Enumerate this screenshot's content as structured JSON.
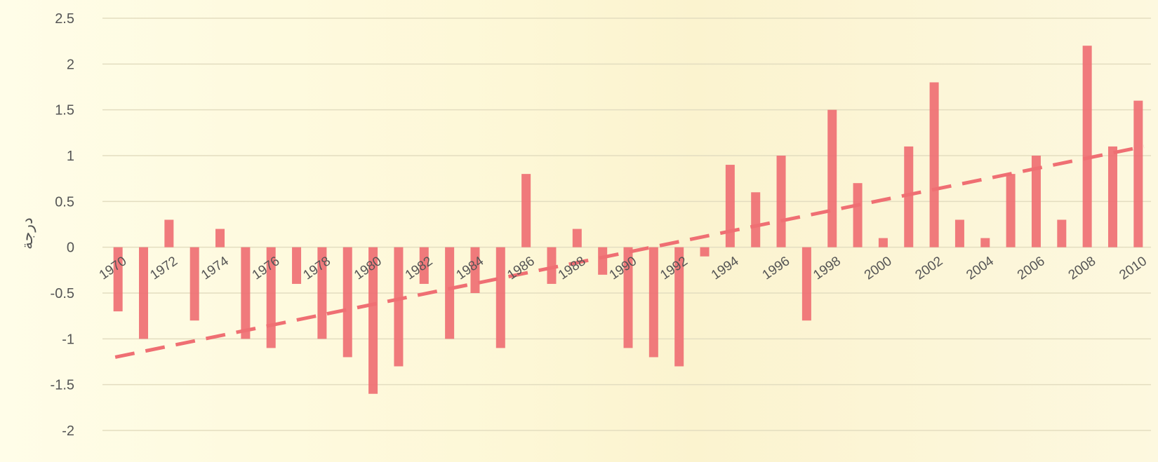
{
  "chart_data": {
    "type": "bar",
    "title": "",
    "xlabel": "",
    "ylabel": "درجة",
    "ylim": [
      -2,
      2.5
    ],
    "yticks": [
      2.5,
      2,
      1.5,
      1,
      0.5,
      0,
      -0.5,
      -1,
      -1.5,
      -2
    ],
    "grid": true,
    "legend": "none",
    "bar_color": "#ef6f73",
    "trend_color": "#ef6f73",
    "categories": [
      "1970",
      "1971",
      "1972",
      "1973",
      "1974",
      "1975",
      "1976",
      "1977",
      "1978",
      "1979",
      "1980",
      "1981",
      "1982",
      "1983",
      "1984",
      "1985",
      "1986",
      "1987",
      "1988",
      "1989",
      "1990",
      "1991",
      "1992",
      "1993",
      "1994",
      "1995",
      "1996",
      "1997",
      "1998",
      "1999",
      "2000",
      "2001",
      "2002",
      "2003",
      "2004",
      "2005",
      "2006",
      "2007",
      "2008",
      "2009",
      "2010"
    ],
    "tick_labels": [
      "1970",
      "1972",
      "1974",
      "1976",
      "1978",
      "1980",
      "1982",
      "1984",
      "1986",
      "1988",
      "1990",
      "1992",
      "1994",
      "1996",
      "1998",
      "2000",
      "2002",
      "2004",
      "2006",
      "2008",
      "2010"
    ],
    "values": [
      -0.7,
      -1.0,
      0.3,
      -0.8,
      0.2,
      -1.0,
      -1.1,
      -0.4,
      -1.0,
      -1.2,
      -1.6,
      -1.3,
      -0.4,
      -1.0,
      -0.5,
      -1.1,
      0.8,
      -0.4,
      0.2,
      -0.3,
      -1.1,
      -1.2,
      -1.3,
      -0.1,
      0.9,
      0.6,
      1.0,
      -0.8,
      1.5,
      0.7,
      0.1,
      1.1,
      1.8,
      0.3,
      0.1,
      0.8,
      1.0,
      0.3,
      2.2,
      1.1,
      1.6
    ],
    "trendline": {
      "style": "dashed",
      "start": [
        1970,
        -1.2
      ],
      "end": [
        2010,
        1.1
      ]
    }
  }
}
